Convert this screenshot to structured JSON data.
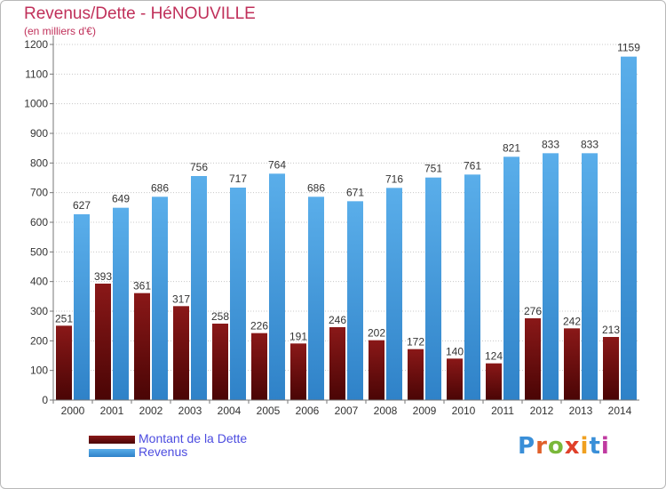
{
  "header": {
    "title": "Revenus/Dette - HéNOUVILLE",
    "subtitle": "(en milliers d'€)"
  },
  "colors": {
    "debt": "#7a1010",
    "revenue": "#4a9ee0",
    "title": "#c0305a",
    "legend_text": "#4c4ce0"
  },
  "legend": {
    "items": [
      {
        "label": "Montant de la Dette"
      },
      {
        "label": "Revenus"
      }
    ]
  },
  "logo": {
    "text": "Proxiti"
  },
  "chart_data": {
    "type": "bar",
    "categories": [
      "2000",
      "2001",
      "2002",
      "2003",
      "2004",
      "2005",
      "2006",
      "2007",
      "2008",
      "2009",
      "2010",
      "2011",
      "2012",
      "2013",
      "2014"
    ],
    "series": [
      {
        "name": "Montant de la Dette",
        "values": [
          251,
          393,
          361,
          317,
          258,
          226,
          191,
          246,
          202,
          172,
          140,
          124,
          276,
          242,
          213
        ]
      },
      {
        "name": "Revenus",
        "values": [
          627,
          649,
          686,
          756,
          717,
          764,
          686,
          671,
          716,
          751,
          761,
          821,
          833,
          833,
          1159
        ]
      }
    ],
    "yticks": [
      0,
      100,
      200,
      300,
      400,
      500,
      600,
      700,
      800,
      900,
      1000,
      1100,
      1200
    ],
    "ylim": [
      0,
      1200
    ],
    "grid": true,
    "legend_position": "bottom-left"
  }
}
